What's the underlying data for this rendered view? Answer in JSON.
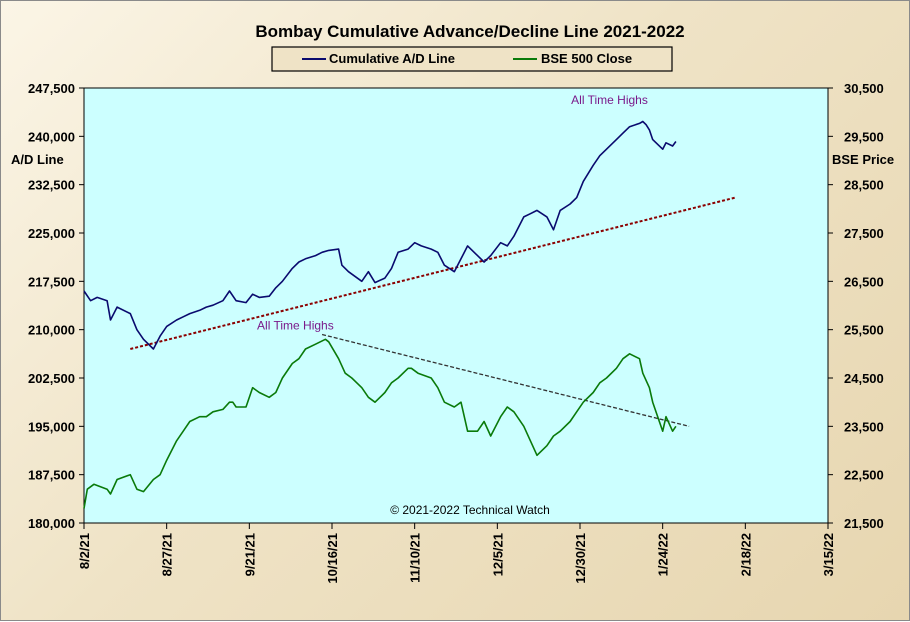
{
  "chart_data": {
    "type": "line",
    "title": "Bombay Cumulative  Advance/Decline  Line  2021-2022",
    "y_left_label": "A/D Line",
    "y_right_label": "BSE Price",
    "y_left_lim": [
      180000,
      247500
    ],
    "y_right_lim": [
      21500,
      30500
    ],
    "y_left_ticks": [
      "180,000",
      "187,500",
      "195,000",
      "202,500",
      "210,000",
      "217,500",
      "225,000",
      "232,500",
      "240,000",
      "247,500"
    ],
    "y_right_ticks": [
      "21,500",
      "22,500",
      "23,500",
      "24,500",
      "25,500",
      "26,500",
      "27,500",
      "28,500",
      "29,500",
      "30,500"
    ],
    "x_tick_labels": [
      "8/2/21",
      "8/27/21",
      "9/21/21",
      "10/16/21",
      "11/10/21",
      "12/5/21",
      "12/30/21",
      "1/24/22",
      "2/18/22",
      "3/15/22"
    ],
    "legend": {
      "placement": "top-center",
      "entries": [
        "Cumulative A/D Line",
        "BSE 500 Close"
      ]
    },
    "series": [
      {
        "name": "Cumulative A/D Line",
        "axis": "left",
        "color": "#0a0a6e",
        "points": [
          [
            "2021-08-02",
            216000
          ],
          [
            "2021-08-04",
            214500
          ],
          [
            "2021-08-06",
            215000
          ],
          [
            "2021-08-09",
            214500
          ],
          [
            "2021-08-10",
            211500
          ],
          [
            "2021-08-12",
            213500
          ],
          [
            "2021-08-16",
            212500
          ],
          [
            "2021-08-18",
            210000
          ],
          [
            "2021-08-20",
            208500
          ],
          [
            "2021-08-23",
            207000
          ],
          [
            "2021-08-25",
            209000
          ],
          [
            "2021-08-27",
            210500
          ],
          [
            "2021-08-30",
            211500
          ],
          [
            "2021-09-01",
            212000
          ],
          [
            "2021-09-03",
            212500
          ],
          [
            "2021-09-06",
            213000
          ],
          [
            "2021-09-08",
            213500
          ],
          [
            "2021-09-10",
            213800
          ],
          [
            "2021-09-13",
            214500
          ],
          [
            "2021-09-15",
            216000
          ],
          [
            "2021-09-17",
            214500
          ],
          [
            "2021-09-20",
            214200
          ],
          [
            "2021-09-22",
            215500
          ],
          [
            "2021-09-24",
            215000
          ],
          [
            "2021-09-27",
            215200
          ],
          [
            "2021-09-29",
            216500
          ],
          [
            "2021-10-01",
            217500
          ],
          [
            "2021-10-04",
            219500
          ],
          [
            "2021-10-06",
            220500
          ],
          [
            "2021-10-08",
            221000
          ],
          [
            "2021-10-11",
            221500
          ],
          [
            "2021-10-13",
            222000
          ],
          [
            "2021-10-15",
            222300
          ],
          [
            "2021-10-18",
            222500
          ],
          [
            "2021-10-19",
            220000
          ],
          [
            "2021-10-21",
            219000
          ],
          [
            "2021-10-25",
            217500
          ],
          [
            "2021-10-27",
            219000
          ],
          [
            "2021-10-29",
            217300
          ],
          [
            "2021-11-01",
            218000
          ],
          [
            "2021-11-03",
            219500
          ],
          [
            "2021-11-05",
            222000
          ],
          [
            "2021-11-08",
            222500
          ],
          [
            "2021-11-10",
            223500
          ],
          [
            "2021-11-12",
            223000
          ],
          [
            "2021-11-15",
            222500
          ],
          [
            "2021-11-17",
            222000
          ],
          [
            "2021-11-19",
            220000
          ],
          [
            "2021-11-22",
            219000
          ],
          [
            "2021-11-24",
            221000
          ],
          [
            "2021-11-26",
            223000
          ],
          [
            "2021-11-29",
            221500
          ],
          [
            "2021-12-01",
            220500
          ],
          [
            "2021-12-03",
            221500
          ],
          [
            "2021-12-06",
            223500
          ],
          [
            "2021-12-08",
            223000
          ],
          [
            "2021-12-10",
            224500
          ],
          [
            "2021-12-13",
            227500
          ],
          [
            "2021-12-15",
            228000
          ],
          [
            "2021-12-17",
            228500
          ],
          [
            "2021-12-20",
            227500
          ],
          [
            "2021-12-22",
            225500
          ],
          [
            "2021-12-24",
            228500
          ],
          [
            "2021-12-27",
            229500
          ],
          [
            "2021-12-29",
            230500
          ],
          [
            "2021-12-31",
            233000
          ],
          [
            "2022-01-03",
            235500
          ],
          [
            "2022-01-05",
            237000
          ],
          [
            "2022-01-07",
            238000
          ],
          [
            "2022-01-10",
            239500
          ],
          [
            "2022-01-12",
            240500
          ],
          [
            "2022-01-14",
            241500
          ],
          [
            "2022-01-17",
            242000
          ],
          [
            "2022-01-18",
            242300
          ],
          [
            "2022-01-19",
            241800
          ],
          [
            "2022-01-20",
            241000
          ],
          [
            "2022-01-21",
            239500
          ],
          [
            "2022-01-24",
            238000
          ],
          [
            "2022-01-25",
            239000
          ],
          [
            "2022-01-27",
            238500
          ],
          [
            "2022-01-28",
            239200
          ]
        ]
      },
      {
        "name": "BSE 500 Close",
        "axis": "right",
        "color": "#0a7a0a",
        "points": [
          [
            "2021-08-02",
            21800
          ],
          [
            "2021-08-03",
            22200
          ],
          [
            "2021-08-05",
            22300
          ],
          [
            "2021-08-09",
            22200
          ],
          [
            "2021-08-10",
            22100
          ],
          [
            "2021-08-12",
            22400
          ],
          [
            "2021-08-16",
            22500
          ],
          [
            "2021-08-18",
            22200
          ],
          [
            "2021-08-20",
            22150
          ],
          [
            "2021-08-23",
            22400
          ],
          [
            "2021-08-25",
            22500
          ],
          [
            "2021-08-27",
            22800
          ],
          [
            "2021-08-30",
            23200
          ],
          [
            "2021-09-01",
            23400
          ],
          [
            "2021-09-03",
            23600
          ],
          [
            "2021-09-06",
            23700
          ],
          [
            "2021-09-08",
            23700
          ],
          [
            "2021-09-10",
            23800
          ],
          [
            "2021-09-13",
            23850
          ],
          [
            "2021-09-15",
            24000
          ],
          [
            "2021-09-16",
            24000
          ],
          [
            "2021-09-17",
            23900
          ],
          [
            "2021-09-20",
            23900
          ],
          [
            "2021-09-22",
            24300
          ],
          [
            "2021-09-24",
            24200
          ],
          [
            "2021-09-27",
            24100
          ],
          [
            "2021-09-29",
            24200
          ],
          [
            "2021-10-01",
            24500
          ],
          [
            "2021-10-04",
            24800
          ],
          [
            "2021-10-06",
            24900
          ],
          [
            "2021-10-08",
            25100
          ],
          [
            "2021-10-11",
            25200
          ],
          [
            "2021-10-14",
            25300
          ],
          [
            "2021-10-15",
            25250
          ],
          [
            "2021-10-18",
            24900
          ],
          [
            "2021-10-20",
            24600
          ],
          [
            "2021-10-22",
            24500
          ],
          [
            "2021-10-25",
            24300
          ],
          [
            "2021-10-27",
            24100
          ],
          [
            "2021-10-29",
            24000
          ],
          [
            "2021-11-01",
            24200
          ],
          [
            "2021-11-03",
            24400
          ],
          [
            "2021-11-05",
            24500
          ],
          [
            "2021-11-08",
            24700
          ],
          [
            "2021-11-09",
            24700
          ],
          [
            "2021-11-11",
            24600
          ],
          [
            "2021-11-15",
            24500
          ],
          [
            "2021-11-17",
            24300
          ],
          [
            "2021-11-19",
            24000
          ],
          [
            "2021-11-22",
            23900
          ],
          [
            "2021-11-24",
            24000
          ],
          [
            "2021-11-26",
            23400
          ],
          [
            "2021-11-29",
            23400
          ],
          [
            "2021-12-01",
            23600
          ],
          [
            "2021-12-03",
            23300
          ],
          [
            "2021-12-06",
            23700
          ],
          [
            "2021-12-08",
            23900
          ],
          [
            "2021-12-10",
            23800
          ],
          [
            "2021-12-13",
            23500
          ],
          [
            "2021-12-15",
            23200
          ],
          [
            "2021-12-17",
            22900
          ],
          [
            "2021-12-20",
            23100
          ],
          [
            "2021-12-22",
            23300
          ],
          [
            "2021-12-24",
            23400
          ],
          [
            "2021-12-27",
            23600
          ],
          [
            "2021-12-29",
            23800
          ],
          [
            "2021-12-31",
            24000
          ],
          [
            "2022-01-03",
            24200
          ],
          [
            "2022-01-05",
            24400
          ],
          [
            "2022-01-07",
            24500
          ],
          [
            "2022-01-10",
            24700
          ],
          [
            "2022-01-12",
            24900
          ],
          [
            "2022-01-14",
            25000
          ],
          [
            "2022-01-17",
            24900
          ],
          [
            "2022-01-18",
            24600
          ],
          [
            "2022-01-20",
            24300
          ],
          [
            "2022-01-21",
            24000
          ],
          [
            "2022-01-24",
            23400
          ],
          [
            "2022-01-25",
            23700
          ],
          [
            "2022-01-27",
            23400
          ],
          [
            "2022-01-28",
            23500
          ]
        ]
      }
    ],
    "trendlines": [
      {
        "axis": "left",
        "color": "#8b0000",
        "from": [
          "2021-08-16",
          207000
        ],
        "to": [
          "2022-02-15",
          230500
        ]
      },
      {
        "axis": "right",
        "color": "#333333",
        "from": [
          "2021-10-13",
          25400
        ],
        "to": [
          "2022-02-01",
          23500
        ]
      }
    ],
    "annotations": [
      {
        "text": "All Time Highs",
        "date": "2022-01-17",
        "axis": "left",
        "value": 243500
      },
      {
        "text": "All Time Highs",
        "date": "2021-10-14",
        "axis": "right",
        "value": 25300
      }
    ],
    "copyright": "© 2021-2022  Technical Watch",
    "x_lim": [
      "2021-08-02",
      "2022-03-15"
    ],
    "grid": false
  }
}
